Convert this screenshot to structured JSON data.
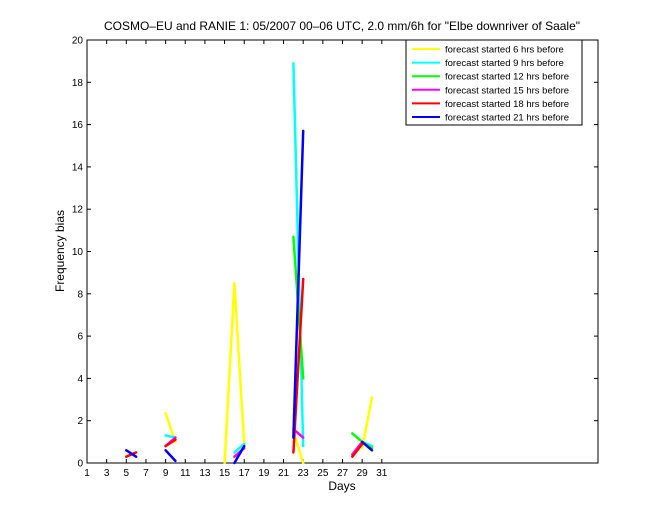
{
  "chart_data": {
    "type": "line",
    "title": "COSMO–EU and RANIE 1: 05/2007 00–06 UTC, 2.0 mm/6h for \"Elbe downriver of Saale\"",
    "xlabel": "Days",
    "ylabel": "Frequency bias",
    "xlim": [
      1,
      53
    ],
    "ylim": [
      0,
      20
    ],
    "xticks": [
      1,
      3,
      5,
      7,
      9,
      11,
      13,
      15,
      17,
      19,
      21,
      23,
      25,
      27,
      29,
      31
    ],
    "yticks": [
      0,
      2,
      4,
      6,
      8,
      10,
      12,
      14,
      16,
      18,
      20
    ],
    "legend_position": "top-right",
    "grid": false,
    "series": [
      {
        "name": "forecast started 6 hrs before",
        "color": "#ffff00",
        "segments": [
          [
            [
              9,
              2.35
            ],
            [
              10,
              1.0
            ]
          ],
          [
            [
              15,
              0.0
            ],
            [
              16,
              8.5
            ],
            [
              17,
              0.9
            ]
          ],
          [
            [
              22,
              1.5
            ],
            [
              23,
              0.0
            ]
          ],
          [
            [
              29,
              0.7
            ],
            [
              30,
              3.1
            ]
          ]
        ]
      },
      {
        "name": "forecast started 9 hrs before",
        "color": "#00ffff",
        "segments": [
          [
            [
              9,
              1.3
            ],
            [
              10,
              1.2
            ]
          ],
          [
            [
              16,
              0.5
            ],
            [
              17,
              0.9
            ]
          ],
          [
            [
              22,
              18.9
            ],
            [
              23,
              0.8
            ]
          ],
          [
            [
              29,
              1.0
            ],
            [
              30,
              0.8
            ]
          ]
        ]
      },
      {
        "name": "forecast started 12 hrs before",
        "color": "#00ff00",
        "segments": [
          [
            [
              22,
              10.7
            ],
            [
              23,
              4.0
            ]
          ],
          [
            [
              28,
              1.4
            ],
            [
              29,
              1.0
            ],
            [
              30,
              0.7
            ]
          ]
        ]
      },
      {
        "name": "forecast started 15 hrs before",
        "color": "#ff00ff",
        "segments": [
          [
            [
              9,
              0.8
            ],
            [
              10,
              1.2
            ]
          ],
          [
            [
              16,
              0.3
            ],
            [
              17,
              0.7
            ]
          ],
          [
            [
              22,
              1.6
            ],
            [
              23,
              1.2
            ]
          ],
          [
            [
              28,
              0.4
            ],
            [
              29,
              1.0
            ]
          ]
        ]
      },
      {
        "name": "forecast started 18 hrs before",
        "color": "#ff0000",
        "segments": [
          [
            [
              5,
              0.3
            ],
            [
              6,
              0.5
            ]
          ],
          [
            [
              9,
              0.8
            ],
            [
              10,
              1.1
            ]
          ],
          [
            [
              22,
              0.5
            ],
            [
              23,
              8.7
            ]
          ],
          [
            [
              28,
              0.3
            ],
            [
              29,
              0.9
            ]
          ]
        ]
      },
      {
        "name": "forecast started 21 hrs before",
        "color": "#0000ff",
        "segments": [
          [
            [
              5,
              0.6
            ],
            [
              6,
              0.3
            ]
          ],
          [
            [
              9,
              0.6
            ],
            [
              10,
              0.1
            ]
          ],
          [
            [
              16,
              0.0
            ],
            [
              17,
              0.8
            ]
          ],
          [
            [
              22,
              1.2
            ],
            [
              23,
              15.7
            ]
          ],
          [
            [
              29,
              1.0
            ],
            [
              30,
              0.6
            ]
          ]
        ]
      }
    ]
  }
}
